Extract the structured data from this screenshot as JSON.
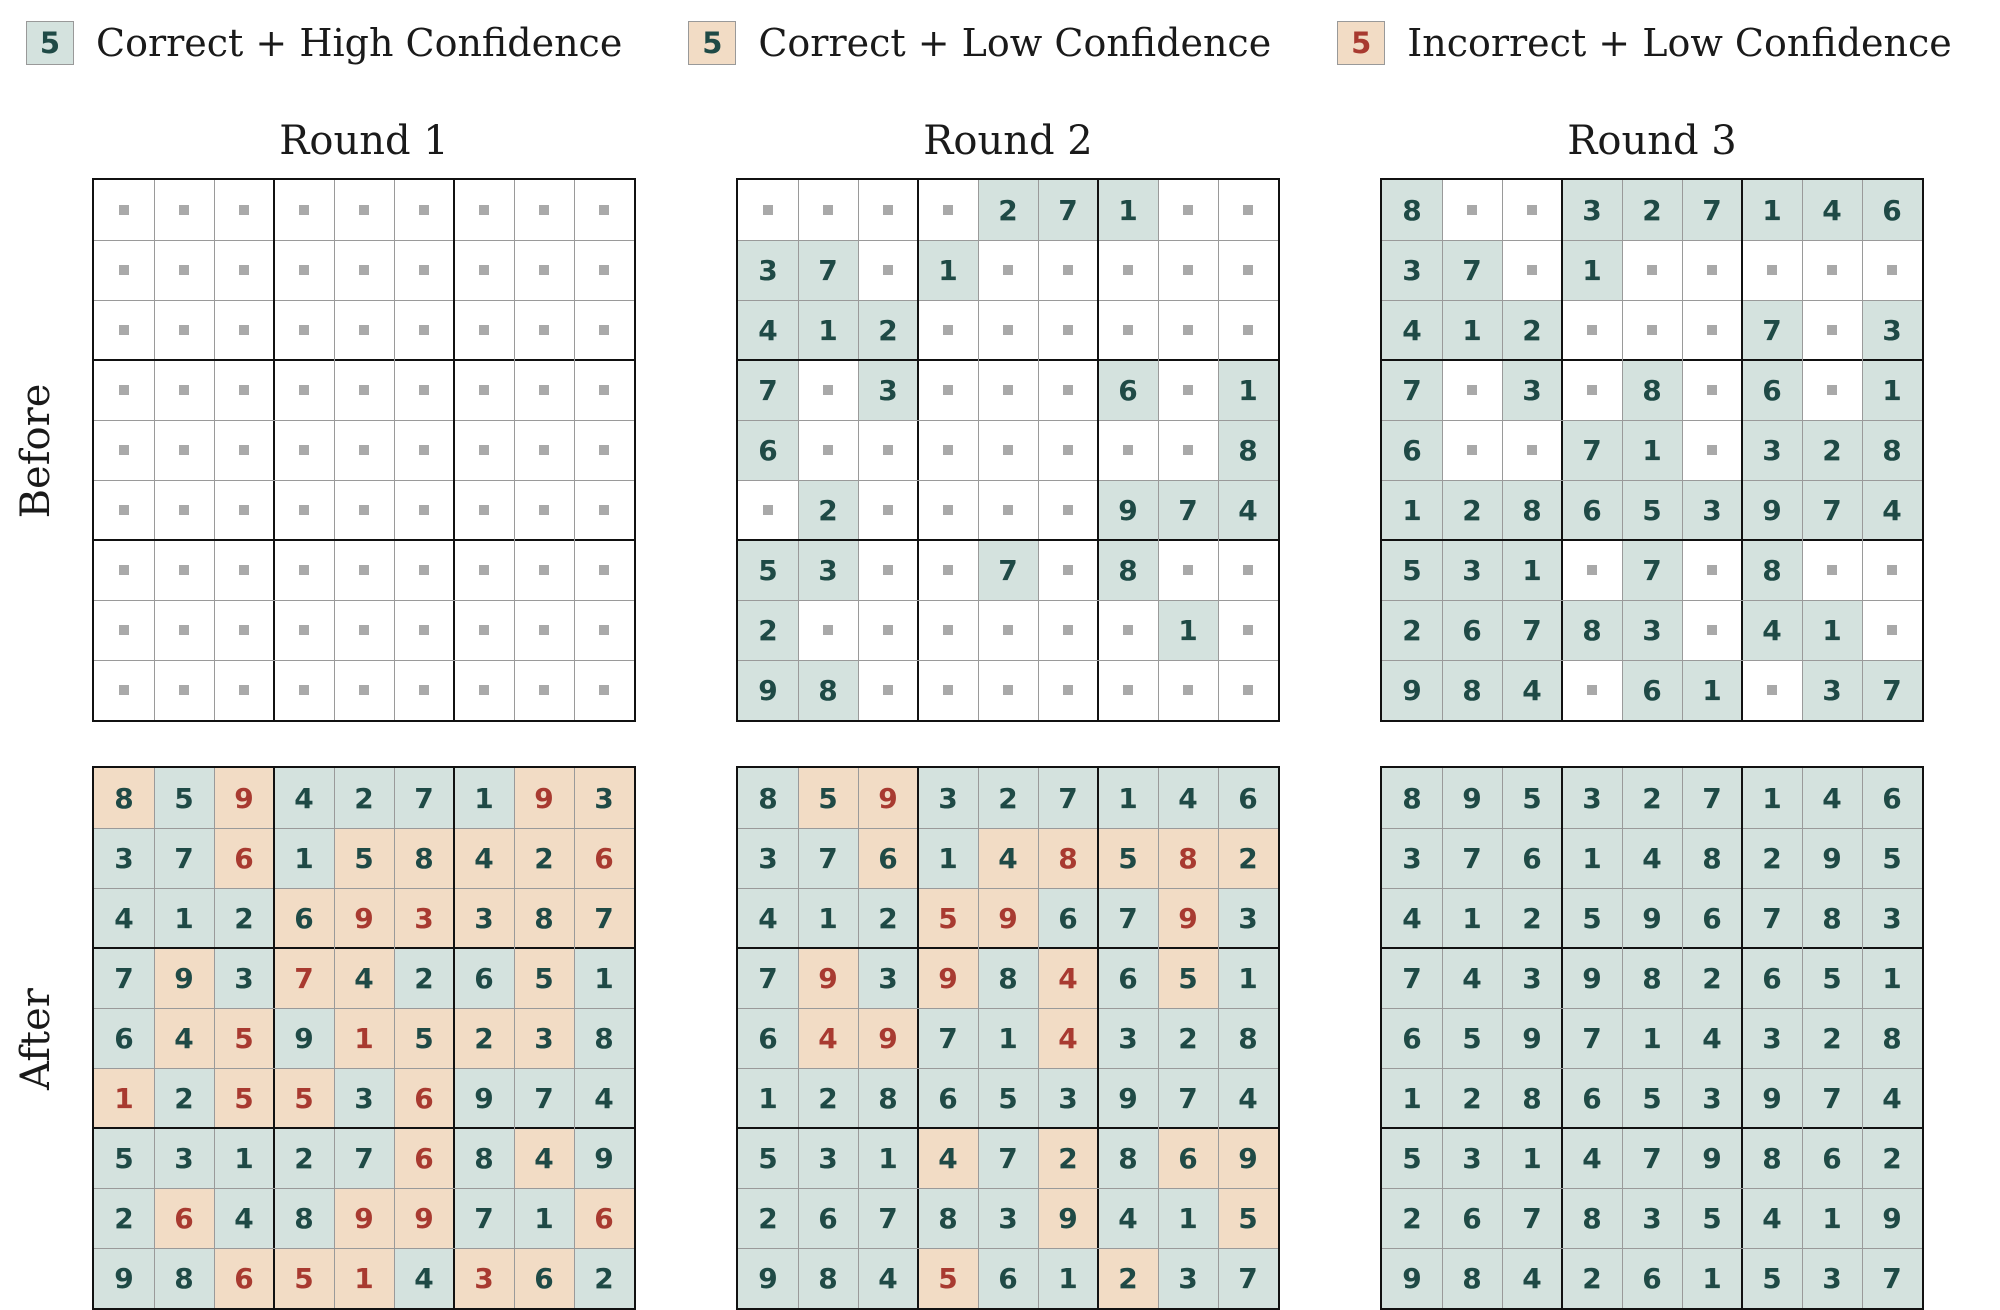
{
  "legend": [
    {
      "digit": "5",
      "label": "Correct + High Confidence",
      "status": "ch"
    },
    {
      "digit": "5",
      "label": "Correct + Low Confidence",
      "status": "cl"
    },
    {
      "digit": "5",
      "label": "Incorrect + Low Confidence",
      "status": "il"
    }
  ],
  "colors": {
    "correct_high": "#d4e2de",
    "low_conf": "#f2dcc5",
    "correct_text": "#1f4a46",
    "incorrect_text": "#a83a30",
    "empty_dot": "#a9a9a9"
  },
  "rounds": [
    "Round 1",
    "Round 2",
    "Round 3"
  ],
  "row_labels": [
    "Before",
    "After"
  ],
  "boards": [
    {
      "round": 1,
      "stage": "before",
      "digits": [
        "000000000",
        "000000000",
        "000000000",
        "000000000",
        "000000000",
        "000000000",
        "000000000",
        "000000000",
        "000000000"
      ],
      "status": [
        ".........",
        ".........",
        ".........",
        ".........",
        ".........",
        ".........",
        ".........",
        ".........",
        "........."
      ]
    },
    {
      "round": 2,
      "stage": "before",
      "digits": [
        "000027100",
        "370100000",
        "412000000",
        "703000601",
        "600000008",
        "020000974",
        "530070800",
        "200000010",
        "980000000"
      ],
      "status": [
        "....HHH..",
        "HH.H.....",
        "HHH......",
        "H.H...H.H",
        "H.......H",
        ".H....HHH",
        "HH..H.H..",
        "H......H.",
        "HH......."
      ]
    },
    {
      "round": 3,
      "stage": "before",
      "digits": [
        "800327146",
        "370100000",
        "412000703",
        "703080601",
        "600710328",
        "128653974",
        "531070800",
        "267830410",
        "984061037"
      ],
      "status": [
        "H..HHHHHH",
        "HH.H.....",
        "HHH...H.H",
        "H.H.H.H.H",
        "H..HH.HHH",
        "HHHHHHHHH",
        "HHH.H.H..",
        "HHHHH.HH.",
        "HHH.HH.HH"
      ]
    },
    {
      "round": 1,
      "stage": "after",
      "digits": [
        "859427193",
        "376158426",
        "412693387",
        "793742651",
        "645915238",
        "125536974",
        "531276849",
        "264899716",
        "986514362"
      ],
      "status": [
        "LHIHHHHIL",
        "HHIHLLLLI",
        "HHHLIILLL",
        "HLHILHHLH",
        "HLIHILLLH",
        "IHIIHIHHH",
        "HHHHHIHLH",
        "HIHHIIHHI",
        "HHIIIHILH"
      ]
    },
    {
      "round": 2,
      "stage": "after",
      "digits": [
        "859327146",
        "376148582",
        "412596793",
        "793984651",
        "649714328",
        "128653974",
        "531472869",
        "267839415",
        "984561237"
      ],
      "status": [
        "HLIHHHHHH",
        "HHLHLILIL",
        "HHHIIHHIH",
        "HIHIHIHLH",
        "HIIHHIHHH",
        "HHHHHHHHH",
        "HHHLHLHLL",
        "HHHHHLHHL",
        "HHHIHHLHH"
      ]
    },
    {
      "round": 3,
      "stage": "after",
      "digits": [
        "895327146",
        "376148295",
        "412596783",
        "743982651",
        "659714328",
        "128653974",
        "531479862",
        "267835419",
        "984261537"
      ],
      "status": [
        "HHHHHHHHH",
        "HHHHHHHHH",
        "HHHHHHHHH",
        "HHHHHHHHH",
        "HHHHHHHHH",
        "HHHHHHHHH",
        "HHHHHHHHH",
        "HHHHHHHHH",
        "HHHHHHHHH"
      ]
    }
  ]
}
